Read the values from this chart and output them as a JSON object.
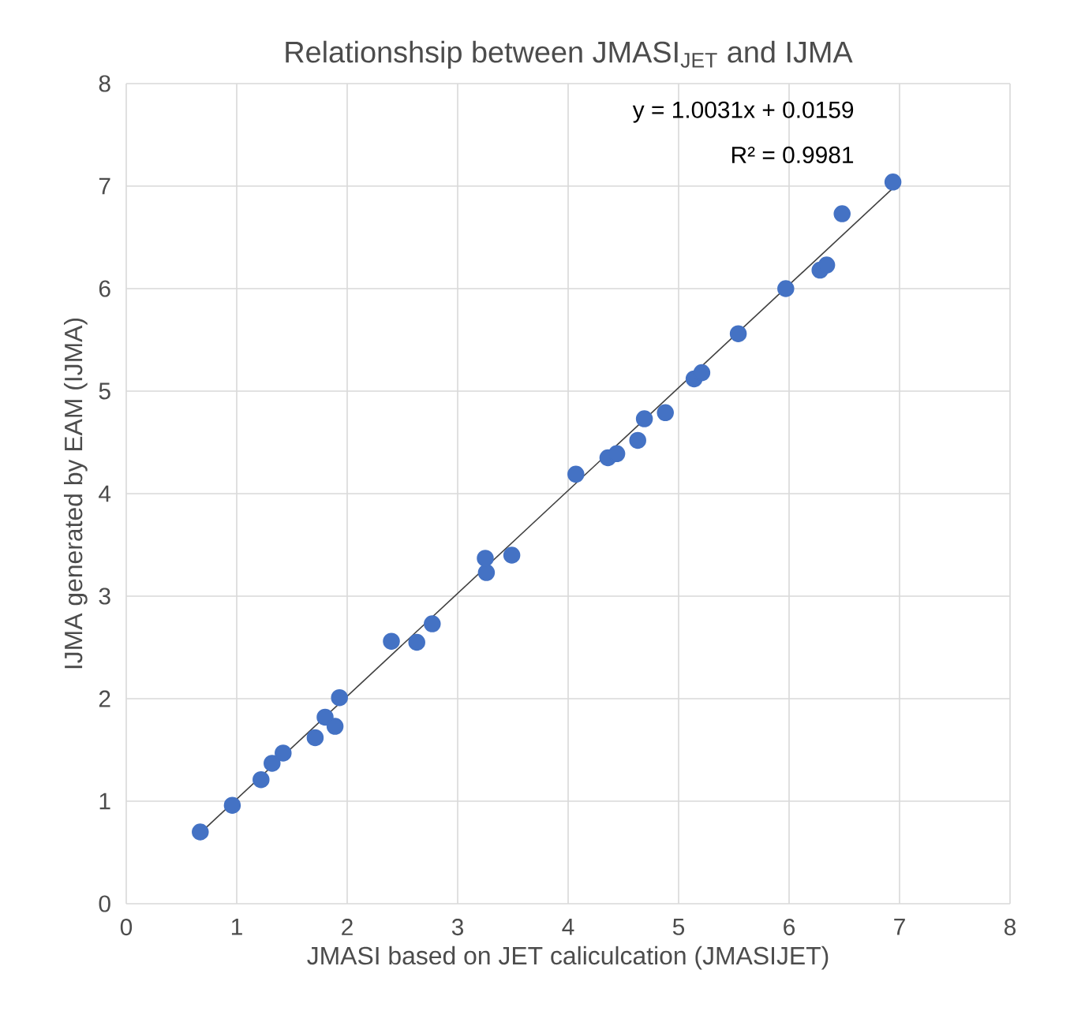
{
  "chart_data": {
    "type": "scatter",
    "title": "Relationshsip between JMASI$_{JET}$ and IJMA",
    "xlabel": "JMASI based on JET caliculcation (JMASIJET)",
    "ylabel": "IJMA generated by EAM (IJMA)",
    "annotations": [
      "y = 1.0031x + 0.0159",
      "R² = 0.9981"
    ],
    "series": [
      {
        "color": "#4472c4",
        "marker": "circle",
        "x": [
          0.67,
          0.96,
          1.22,
          1.32,
          1.42,
          1.71,
          1.8,
          1.89,
          1.93,
          2.4,
          2.63,
          2.77,
          3.26,
          3.25,
          3.49,
          4.07,
          4.36,
          4.44,
          4.63,
          4.69,
          4.88,
          5.14,
          5.21,
          5.54,
          5.97,
          6.28,
          6.34,
          6.48,
          6.94
        ],
        "values": [
          0.7,
          0.96,
          1.21,
          1.37,
          1.47,
          1.62,
          1.82,
          1.73,
          2.01,
          2.56,
          2.55,
          2.73,
          3.23,
          3.37,
          3.4,
          4.19,
          4.35,
          4.39,
          4.52,
          4.73,
          4.79,
          5.12,
          5.18,
          5.56,
          6.0,
          6.18,
          6.23,
          6.73,
          7.04
        ]
      },
      {
        "type": "line",
        "color": "#404040",
        "marker": "none",
        "x": [
          0.67,
          6.94
        ],
        "values": [
          0.69,
          6.98
        ]
      }
    ],
    "xlim": [
      0,
      8
    ],
    "ylim": [
      0,
      8
    ],
    "xticks": [
      0,
      1,
      2,
      3,
      4,
      5,
      6,
      7,
      8
    ],
    "yticks": [
      0,
      1,
      2,
      3,
      4,
      5,
      6,
      7,
      8
    ],
    "grid": true
  }
}
